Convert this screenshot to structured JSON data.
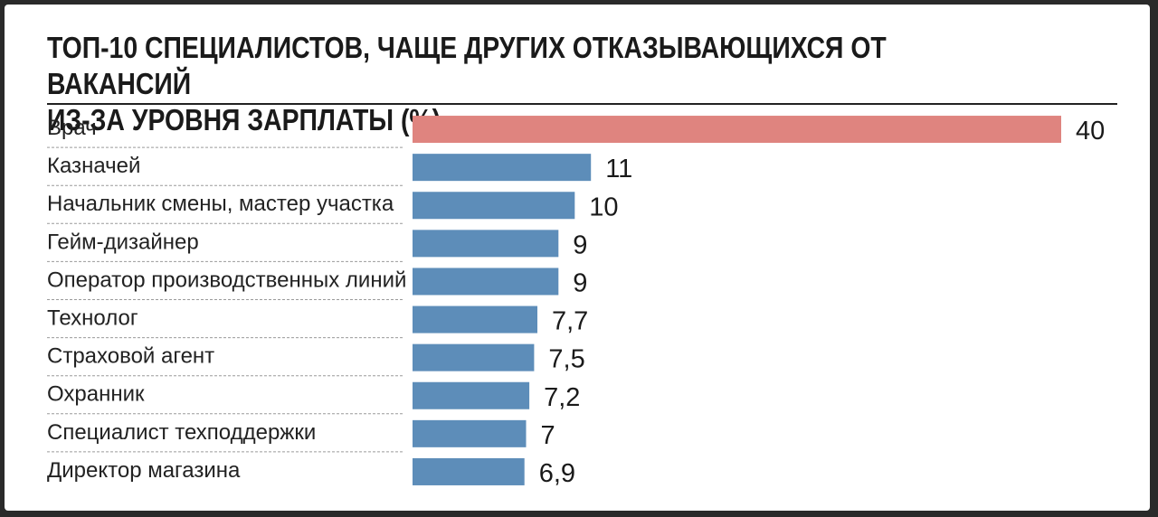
{
  "chart_data": {
    "type": "bar",
    "orientation": "horizontal",
    "title": "ТОП-10 СПЕЦИАЛИСТОВ, ЧАЩЕ ДРУГИХ ОТКАЗЫВАЮЩИХСЯ ОТ ВАКАНСИЙ\nИЗ-ЗА УРОВНЯ ЗАРПЛАТЫ (%)",
    "categories": [
      "Врач",
      "Казначей",
      "Начальник смены, мастер участка",
      "Гейм-дизайнер",
      "Оператор производственных линий",
      "Технолог",
      "Страховой агент",
      "Охранник",
      "Специалист техподдержки",
      "Директор магазина"
    ],
    "values": [
      40,
      11,
      10,
      9,
      9,
      7.7,
      7.5,
      7.2,
      7,
      6.9
    ],
    "value_labels": [
      "40",
      "11",
      "10",
      "9",
      "9",
      "7,7",
      "7,5",
      "7,2",
      "7",
      "6,9"
    ],
    "xlim": [
      0,
      40
    ],
    "grid": false,
    "colors": {
      "highlight": "#df847f",
      "bar": "#5d8db9",
      "separator": "#9a9a9a"
    }
  }
}
